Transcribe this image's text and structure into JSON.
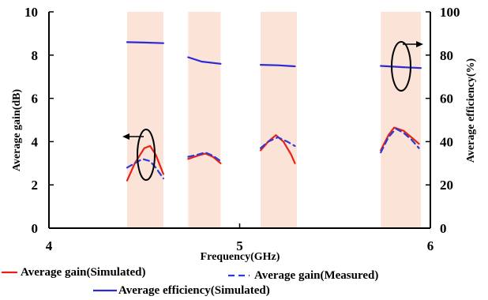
{
  "chart_data": {
    "type": "line",
    "title": "",
    "xlabel": "Frequency(GHz)",
    "ylabel": "Average gain(dB)",
    "y2label": "Average efficiency(%)",
    "xlim": [
      4,
      6
    ],
    "ylim": [
      0,
      10
    ],
    "y2lim": [
      0,
      100
    ],
    "xticks": [
      4,
      5,
      6
    ],
    "xtick_labels": [
      "4",
      "5",
      "6"
    ],
    "yticks": [
      0,
      2,
      4,
      6,
      8,
      10
    ],
    "ytick_labels": [
      "0",
      "2",
      "4",
      "6",
      "8",
      "10"
    ],
    "y2ticks": [
      0,
      20,
      40,
      60,
      80,
      100
    ],
    "y2tick_labels": [
      "0",
      "20",
      "40",
      "60",
      "80",
      "100"
    ],
    "grid": false,
    "legend_position": "bottom",
    "shaded_bands": [
      {
        "x0": 4.41,
        "x1": 4.6
      },
      {
        "x0": 4.73,
        "x1": 4.9
      },
      {
        "x0": 5.11,
        "x1": 5.3
      },
      {
        "x0": 5.74,
        "x1": 5.95
      }
    ],
    "series": [
      {
        "name": "Average gain(Simulated)",
        "axis": "left",
        "color": "#e8201a",
        "dash": "solid",
        "segments": [
          [
            [
              4.41,
              2.2
            ],
            [
              4.45,
              3.0
            ],
            [
              4.5,
              3.7
            ],
            [
              4.53,
              3.8
            ],
            [
              4.56,
              3.4
            ],
            [
              4.6,
              2.5
            ]
          ],
          [
            [
              4.73,
              3.2
            ],
            [
              4.78,
              3.35
            ],
            [
              4.82,
              3.45
            ],
            [
              4.86,
              3.3
            ],
            [
              4.9,
              3.0
            ]
          ],
          [
            [
              5.11,
              3.6
            ],
            [
              5.15,
              4.0
            ],
            [
              5.19,
              4.3
            ],
            [
              5.23,
              4.0
            ],
            [
              5.27,
              3.4
            ],
            [
              5.29,
              3.0
            ]
          ],
          [
            [
              5.74,
              3.6
            ],
            [
              5.78,
              4.3
            ],
            [
              5.81,
              4.65
            ],
            [
              5.86,
              4.5
            ],
            [
              5.9,
              4.2
            ],
            [
              5.94,
              3.9
            ]
          ]
        ]
      },
      {
        "name": "Average gain(Measured)",
        "axis": "left",
        "color": "#2a3bd6",
        "dash": "dashed",
        "segments": [
          [
            [
              4.41,
              2.8
            ],
            [
              4.45,
              3.0
            ],
            [
              4.49,
              3.2
            ],
            [
              4.53,
              3.1
            ],
            [
              4.56,
              2.8
            ],
            [
              4.6,
              2.3
            ]
          ],
          [
            [
              4.73,
              3.3
            ],
            [
              4.78,
              3.4
            ],
            [
              4.82,
              3.5
            ],
            [
              4.86,
              3.35
            ],
            [
              4.9,
              3.1
            ]
          ],
          [
            [
              5.11,
              3.7
            ],
            [
              5.15,
              4.0
            ],
            [
              5.2,
              4.2
            ],
            [
              5.25,
              4.0
            ],
            [
              5.29,
              3.8
            ]
          ],
          [
            [
              5.74,
              3.5
            ],
            [
              5.78,
              4.2
            ],
            [
              5.82,
              4.6
            ],
            [
              5.86,
              4.4
            ],
            [
              5.9,
              4.1
            ],
            [
              5.94,
              3.7
            ]
          ]
        ]
      },
      {
        "name": "Average efficiency(Simulated)",
        "axis": "right",
        "color": "#2a2ad6",
        "dash": "solid",
        "segments": [
          [
            [
              4.41,
              86
            ],
            [
              4.5,
              85.8
            ],
            [
              4.6,
              85.5
            ]
          ],
          [
            [
              4.73,
              79
            ],
            [
              4.8,
              77
            ],
            [
              4.9,
              76
            ]
          ],
          [
            [
              5.11,
              75.5
            ],
            [
              5.2,
              75.3
            ],
            [
              5.29,
              74.8
            ]
          ],
          [
            [
              5.74,
              75
            ],
            [
              5.84,
              74.5
            ],
            [
              5.95,
              74
            ]
          ]
        ]
      }
    ]
  }
}
